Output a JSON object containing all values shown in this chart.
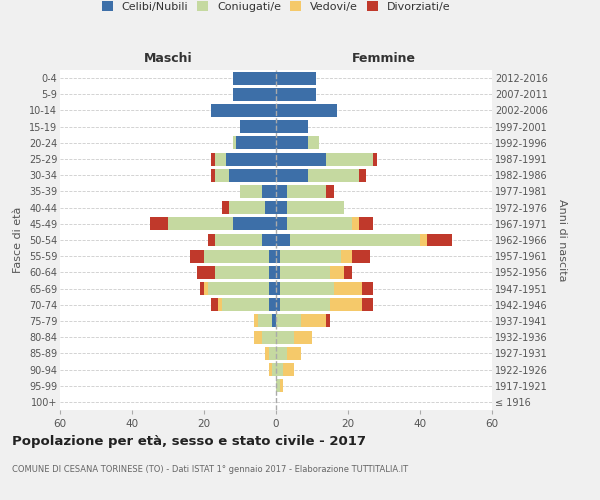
{
  "age_groups": [
    "100+",
    "95-99",
    "90-94",
    "85-89",
    "80-84",
    "75-79",
    "70-74",
    "65-69",
    "60-64",
    "55-59",
    "50-54",
    "45-49",
    "40-44",
    "35-39",
    "30-34",
    "25-29",
    "20-24",
    "15-19",
    "10-14",
    "5-9",
    "0-4"
  ],
  "birth_years": [
    "≤ 1916",
    "1917-1921",
    "1922-1926",
    "1927-1931",
    "1932-1936",
    "1937-1941",
    "1942-1946",
    "1947-1951",
    "1952-1956",
    "1957-1961",
    "1962-1966",
    "1967-1971",
    "1972-1976",
    "1977-1981",
    "1982-1986",
    "1987-1991",
    "1992-1996",
    "1997-2001",
    "2002-2006",
    "2007-2011",
    "2012-2016"
  ],
  "maschi": {
    "celibi": [
      0,
      0,
      0,
      0,
      0,
      1,
      2,
      2,
      2,
      2,
      4,
      12,
      3,
      4,
      13,
      14,
      11,
      10,
      18,
      12,
      12
    ],
    "coniugati": [
      0,
      0,
      1,
      2,
      4,
      4,
      13,
      17,
      15,
      18,
      13,
      18,
      10,
      6,
      4,
      3,
      1,
      0,
      0,
      0,
      0
    ],
    "vedovi": [
      0,
      0,
      1,
      1,
      2,
      1,
      1,
      1,
      0,
      0,
      0,
      0,
      0,
      0,
      0,
      0,
      0,
      0,
      0,
      0,
      0
    ],
    "divorziati": [
      0,
      0,
      0,
      0,
      0,
      0,
      2,
      1,
      5,
      4,
      2,
      5,
      2,
      0,
      1,
      1,
      0,
      0,
      0,
      0,
      0
    ]
  },
  "femmine": {
    "nubili": [
      0,
      0,
      0,
      0,
      0,
      0,
      1,
      1,
      1,
      1,
      4,
      3,
      3,
      3,
      9,
      14,
      9,
      9,
      17,
      11,
      11
    ],
    "coniugate": [
      0,
      1,
      2,
      3,
      5,
      7,
      14,
      15,
      14,
      17,
      36,
      18,
      16,
      11,
      14,
      13,
      3,
      0,
      0,
      0,
      0
    ],
    "vedove": [
      0,
      1,
      3,
      4,
      5,
      7,
      9,
      8,
      4,
      3,
      2,
      2,
      0,
      0,
      0,
      0,
      0,
      0,
      0,
      0,
      0
    ],
    "divorziate": [
      0,
      0,
      0,
      0,
      0,
      1,
      3,
      3,
      2,
      5,
      7,
      4,
      0,
      2,
      2,
      1,
      0,
      0,
      0,
      0,
      0
    ]
  },
  "colors": {
    "celibe": "#3d6fa8",
    "coniugato": "#c5d9a0",
    "vedovo": "#f5c96a",
    "divorziato": "#c0392b"
  },
  "xlim": 60,
  "title": "Popolazione per età, sesso e stato civile - 2017",
  "subtitle": "COMUNE DI CESANA TORINESE (TO) - Dati ISTAT 1° gennaio 2017 - Elaborazione TUTTITALIA.IT",
  "ylabel": "Fasce di età",
  "ylabel_right": "Anni di nascita",
  "xlabel_left": "Maschi",
  "xlabel_right": "Femmine",
  "bg_color": "#f0f0f0",
  "plot_bg": "#ffffff"
}
